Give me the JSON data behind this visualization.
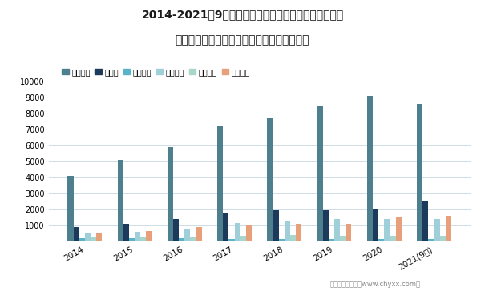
{
  "title_line1": "2014-2021年9月上汽集团、比亚迪、东风汽车、广汽集",
  "title_line2": "团、江淮汽车、长城汽车总资产对比（亿元）",
  "years": [
    "2014",
    "2015",
    "2016",
    "2017",
    "2018",
    "2019",
    "2020",
    "2021(9月)"
  ],
  "companies": [
    "上汽集团",
    "比亚迪",
    "东风汽车",
    "广汽集团",
    "江淮汽车",
    "长城汽车"
  ],
  "colors": [
    "#4d7f8e",
    "#1b3a5c",
    "#5ab4c8",
    "#9fd0da",
    "#a8d5cc",
    "#e8a07a"
  ],
  "data": {
    "上汽集团": [
      4100,
      5100,
      5900,
      7200,
      7750,
      8450,
      9100,
      8600
    ],
    "比亚迪": [
      900,
      1100,
      1400,
      1750,
      1950,
      1950,
      1980,
      2480
    ],
    "东风汽车": [
      200,
      200,
      200,
      150,
      180,
      150,
      180,
      160
    ],
    "广汽集团": [
      550,
      600,
      780,
      1150,
      1280,
      1380,
      1400,
      1420
    ],
    "江淮汽车": [
      280,
      280,
      280,
      380,
      400,
      380,
      380,
      380
    ],
    "长城汽车": [
      580,
      680,
      900,
      1050,
      1100,
      1100,
      1500,
      1600
    ]
  },
  "ylim": [
    0,
    10000
  ],
  "yticks": [
    0,
    1000,
    2000,
    3000,
    4000,
    5000,
    6000,
    7000,
    8000,
    9000,
    10000
  ],
  "bg_color": "#ffffff",
  "grid_color": "#cddce6",
  "footer": "制图：智研咨询（www.chyxx.com）"
}
